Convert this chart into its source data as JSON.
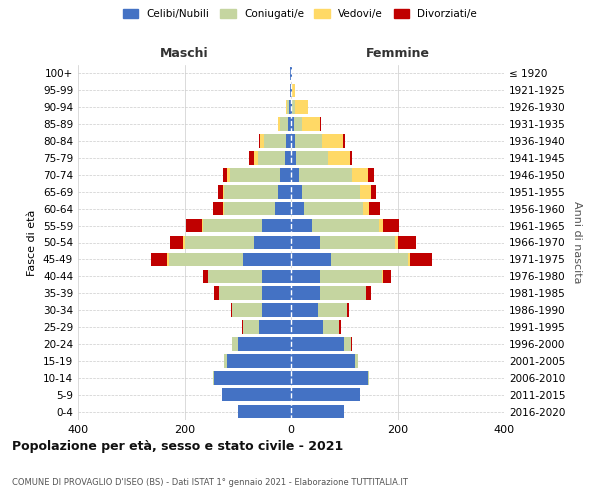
{
  "age_groups": [
    "0-4",
    "5-9",
    "10-14",
    "15-19",
    "20-24",
    "25-29",
    "30-34",
    "35-39",
    "40-44",
    "45-49",
    "50-54",
    "55-59",
    "60-64",
    "65-69",
    "70-74",
    "75-79",
    "80-84",
    "85-89",
    "90-94",
    "95-99",
    "100+"
  ],
  "birth_years": [
    "2016-2020",
    "2011-2015",
    "2006-2010",
    "2001-2005",
    "1996-2000",
    "1991-1995",
    "1986-1990",
    "1981-1985",
    "1976-1980",
    "1971-1975",
    "1966-1970",
    "1961-1965",
    "1956-1960",
    "1951-1955",
    "1946-1950",
    "1941-1945",
    "1936-1940",
    "1931-1935",
    "1926-1930",
    "1921-1925",
    "≤ 1920"
  ],
  "maschi": {
    "celibi": [
      100,
      130,
      145,
      120,
      100,
      60,
      55,
      55,
      55,
      90,
      70,
      55,
      30,
      25,
      20,
      12,
      10,
      5,
      3,
      2,
      1
    ],
    "coniugati": [
      0,
      0,
      2,
      5,
      10,
      30,
      55,
      80,
      100,
      140,
      130,
      110,
      95,
      100,
      95,
      50,
      40,
      15,
      5,
      0,
      0
    ],
    "vedovi": [
      0,
      0,
      0,
      0,
      0,
      0,
      0,
      0,
      0,
      3,
      3,
      2,
      2,
      3,
      5,
      8,
      8,
      5,
      2,
      0,
      0
    ],
    "divorziati": [
      0,
      0,
      0,
      0,
      0,
      2,
      2,
      10,
      10,
      30,
      25,
      30,
      20,
      10,
      8,
      8,
      2,
      0,
      0,
      0,
      0
    ]
  },
  "femmine": {
    "nubili": [
      100,
      130,
      145,
      120,
      100,
      60,
      50,
      55,
      55,
      75,
      55,
      40,
      25,
      20,
      15,
      10,
      8,
      5,
      2,
      2,
      1
    ],
    "coniugate": [
      0,
      0,
      2,
      5,
      12,
      30,
      55,
      85,
      115,
      145,
      140,
      125,
      110,
      110,
      100,
      60,
      50,
      15,
      5,
      0,
      0
    ],
    "vedove": [
      0,
      0,
      0,
      0,
      0,
      0,
      0,
      0,
      2,
      4,
      5,
      8,
      12,
      20,
      30,
      40,
      40,
      35,
      25,
      5,
      1
    ],
    "divorziate": [
      0,
      0,
      0,
      0,
      2,
      3,
      3,
      10,
      15,
      40,
      35,
      30,
      20,
      10,
      10,
      5,
      3,
      2,
      0,
      0,
      0
    ]
  },
  "colors": {
    "celibi_nubili": "#4472C4",
    "coniugati": "#C5D5A0",
    "vedovi": "#FFD966",
    "divorziati": "#C00000"
  },
  "xlim": 400,
  "title": "Popolazione per età, sesso e stato civile - 2021",
  "subtitle": "COMUNE DI PROVAGLIO D'ISEO (BS) - Dati ISTAT 1° gennaio 2021 - Elaborazione TUTTITALIA.IT",
  "ylabel_left": "Fasce di età",
  "ylabel_right": "Anni di nascita",
  "legend_labels": [
    "Celibi/Nubili",
    "Coniugati/e",
    "Vedovi/e",
    "Divorziati/e"
  ],
  "background_color": "#FFFFFF"
}
